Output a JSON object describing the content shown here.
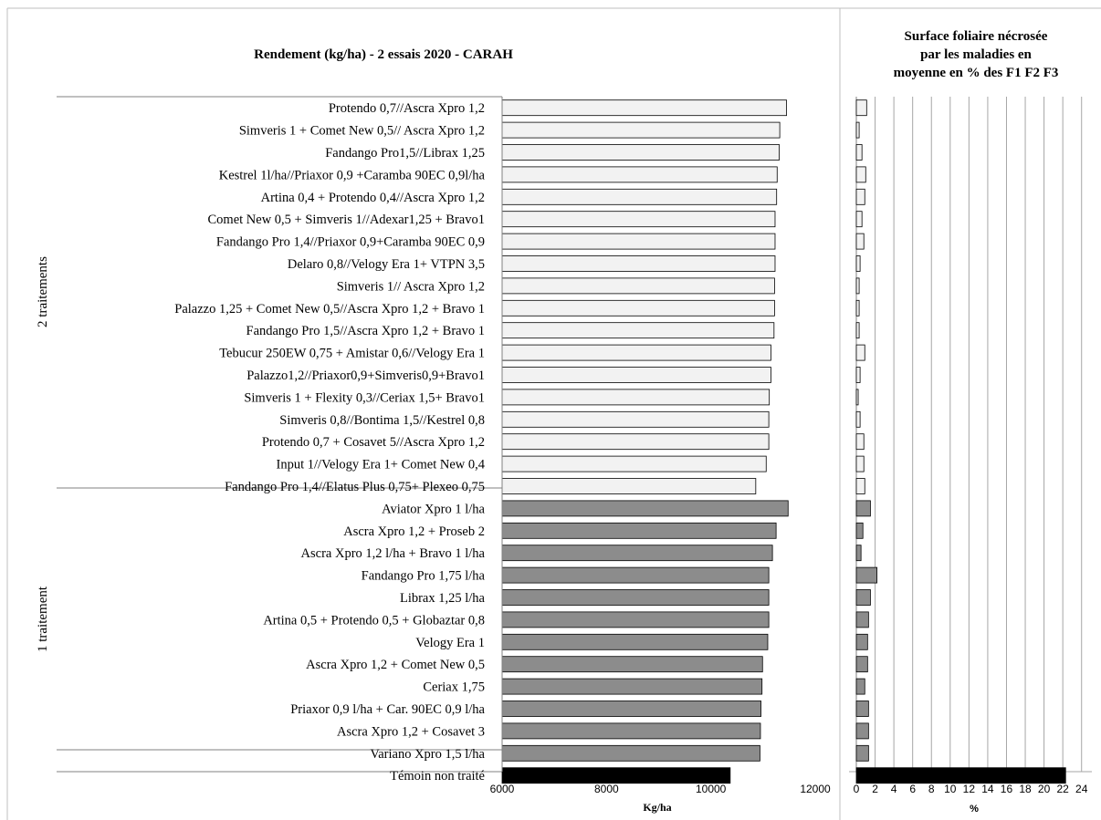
{
  "colors": {
    "two_treatments_bar": "#f2f2f2",
    "one_treatment_bar": "#8c8c8c",
    "control_bar": "#000000",
    "grid": "#a6a6a6",
    "frame": "#bfbfbf"
  },
  "chart_data": [
    {
      "type": "bar",
      "orientation": "horizontal",
      "title": "Rendement (kg/ha) - 2 essais 2020 - CARAH",
      "xlabel": "Kg/ha",
      "xlim": [
        6000,
        12000
      ],
      "xticks": [
        "6000",
        "8000",
        "10000",
        "12000"
      ],
      "grid": false,
      "groups": [
        {
          "name": "2 traitements",
          "start": 0,
          "end": 17
        },
        {
          "name": "1 traitement",
          "start": 18,
          "end": 29
        },
        {
          "name": "",
          "start": 30,
          "end": 30
        }
      ],
      "categories": [
        "Protendo 0,7//Ascra Xpro 1,2",
        "Simveris 1 + Comet New 0,5// Ascra Xpro 1,2",
        "Fandango Pro1,5//Librax 1,25",
        "Kestrel 1l/ha//Priaxor 0,9 +Caramba 90EC 0,9l/ha",
        "Artina 0,4 + Protendo 0,4//Ascra Xpro 1,2",
        "Comet New 0,5 + Simveris 1//Adexar1,25 + Bravo1",
        "Fandango Pro 1,4//Priaxor 0,9+Caramba 90EC 0,9",
        "Delaro 0,8//Velogy Era 1+ VTPN 3,5",
        "Simveris 1// Ascra Xpro 1,2",
        "Palazzo 1,25 + Comet New 0,5//Ascra Xpro 1,2 + Bravo 1",
        "Fandango Pro 1,5//Ascra Xpro 1,2 + Bravo 1",
        "Tebucur 250EW 0,75 + Amistar 0,6//Velogy Era 1",
        "Palazzo1,2//Priaxor0,9+Simveris0,9+Bravo1",
        "Simveris 1 + Flexity 0,3//Ceriax 1,5+ Bravo1",
        "Simveris 0,8//Bontima 1,5//Kestrel 0,8",
        "Protendo 0,7 + Cosavet 5//Ascra Xpro 1,2",
        "Input 1//Velogy Era 1+ Comet New 0,4",
        "Fandango Pro 1,4//Elatus Plus 0,75+ Plexeo 0,75",
        "Aviator Xpro 1 l/ha",
        "Ascra Xpro 1,2 + Proseb 2",
        "Ascra Xpro 1,2 l/ha + Bravo 1 l/ha",
        "Fandango Pro 1,75 l/ha",
        "Librax 1,25 l/ha",
        "Artina 0,5 + Protendo 0,5 + Globaztar 0,8",
        "Velogy Era 1",
        "Ascra Xpro 1,2 + Comet New 0,5",
        "Ceriax 1,75",
        "Priaxor 0,9 l/ha + Car. 90EC 0,9 l/ha",
        "Ascra Xpro 1,2 + Cosavet 3",
        "Variano Xpro 1,5 l/ha",
        "Témoin non traité"
      ],
      "values": [
        11450,
        11320,
        11310,
        11270,
        11260,
        11230,
        11230,
        11230,
        11220,
        11220,
        11210,
        11150,
        11150,
        11120,
        11110,
        11110,
        11060,
        10860,
        11480,
        11250,
        11180,
        11110,
        11110,
        11110,
        11090,
        10990,
        10980,
        10960,
        10950,
        10940,
        10370
      ]
    },
    {
      "type": "bar",
      "orientation": "horizontal",
      "title": [
        "Surface foliaire nécrosée",
        "par les maladies en",
        "moyenne en % des F1 F2 F3"
      ],
      "xlabel": "%",
      "xlim": [
        0,
        25
      ],
      "xticks": [
        "0",
        "2",
        "4",
        "6",
        "8",
        "10",
        "12",
        "14",
        "16",
        "18",
        "20",
        "22",
        "24"
      ],
      "grid": true,
      "values": [
        1.1,
        0.3,
        0.6,
        1.0,
        0.9,
        0.6,
        0.8,
        0.4,
        0.3,
        0.3,
        0.3,
        0.9,
        0.4,
        0.2,
        0.4,
        0.8,
        0.8,
        0.9,
        1.5,
        0.7,
        0.5,
        2.2,
        1.5,
        1.3,
        1.2,
        1.2,
        0.9,
        1.3,
        1.3,
        1.3,
        22.3
      ]
    }
  ]
}
